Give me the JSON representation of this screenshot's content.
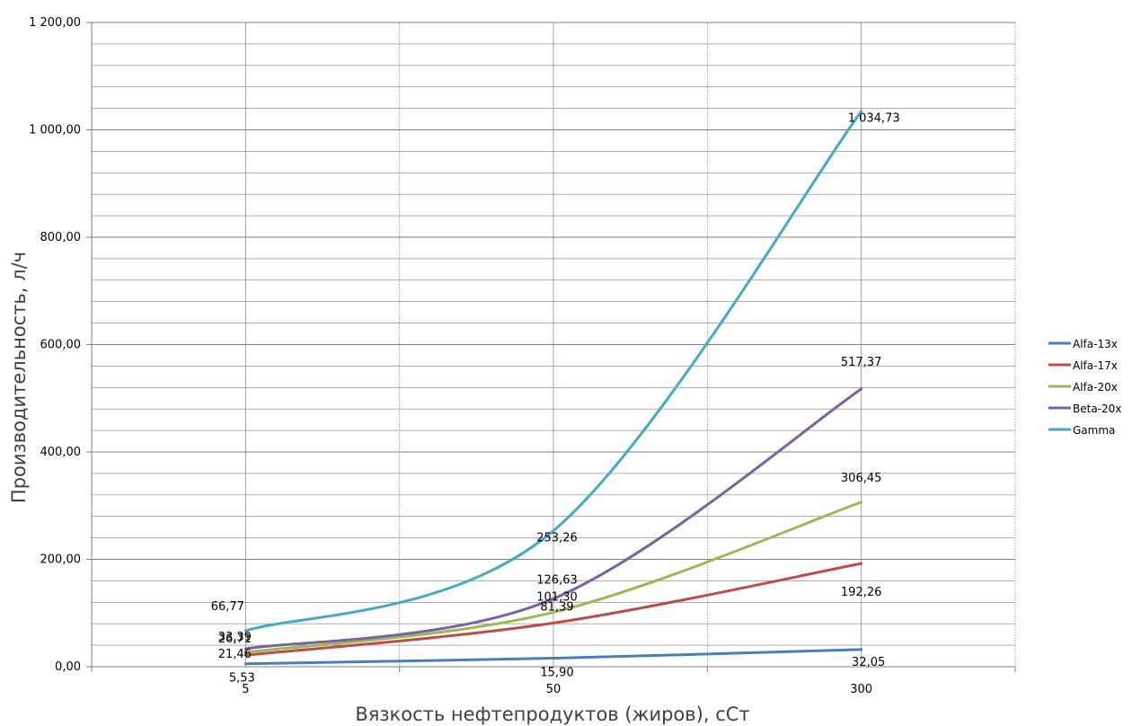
{
  "chart_data": {
    "type": "line",
    "title": "",
    "xlabel": "Вязкость нефтепродуктов (жиров), сСт",
    "ylabel": "Производительность, л/ч",
    "categories": [
      "5",
      "50",
      "300"
    ],
    "ylim": [
      0,
      1200
    ],
    "y_ticks": [
      "0,00",
      "200,00",
      "400,00",
      "600,00",
      "800,00",
      "1 000,00",
      "1 200,00"
    ],
    "grid": true,
    "legend_position": "right",
    "series": [
      {
        "name": "Alfa-13x",
        "color": "#4a7ebb",
        "values": [
          5.53,
          15.9,
          32.05
        ],
        "labels": [
          "5,53",
          "15,90",
          "32,05"
        ]
      },
      {
        "name": "Alfa-17x",
        "color": "#be4b48",
        "values": [
          21.46,
          81.39,
          192.26
        ],
        "labels": [
          "21,46",
          "81,39",
          "192,26"
        ]
      },
      {
        "name": "Alfa-20x",
        "color": "#98b954",
        "values": [
          26.71,
          101.3,
          306.45
        ],
        "labels": [
          "26,71",
          "101,30",
          "306,45"
        ]
      },
      {
        "name": "Beta-20x",
        "color": "#7d60a0",
        "values": [
          33.39,
          126.63,
          517.37
        ],
        "labels": [
          "33,39",
          "126,63",
          "517,37"
        ]
      },
      {
        "name": "Gamma",
        "color": "#46aac5",
        "values": [
          66.77,
          253.26,
          1034.73
        ],
        "labels": [
          "66,77",
          "253,26",
          "1 034,73"
        ]
      }
    ]
  }
}
